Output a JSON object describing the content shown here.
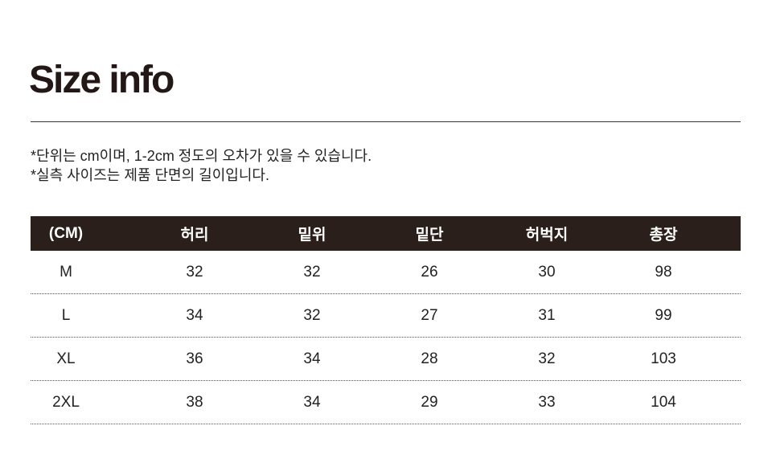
{
  "title": "Size info",
  "notes": [
    "*단위는 cm이며, 1-2cm 정도의 오차가 있을 수 있습니다.",
    "*실측 사이즈는 제품 단면의 길이입니다."
  ],
  "table": {
    "headers": [
      "(CM)",
      "허리",
      "밑위",
      "밑단",
      "허벅지",
      "총장"
    ],
    "rows": [
      [
        "M",
        "32",
        "32",
        "26",
        "30",
        "98"
      ],
      [
        "L",
        "34",
        "32",
        "27",
        "31",
        "99"
      ],
      [
        "XL",
        "36",
        "34",
        "28",
        "32",
        "103"
      ],
      [
        "2XL",
        "38",
        "34",
        "29",
        "33",
        "104"
      ]
    ]
  },
  "colors": {
    "header_bg": "#2a1f1a",
    "title": "#231815"
  }
}
